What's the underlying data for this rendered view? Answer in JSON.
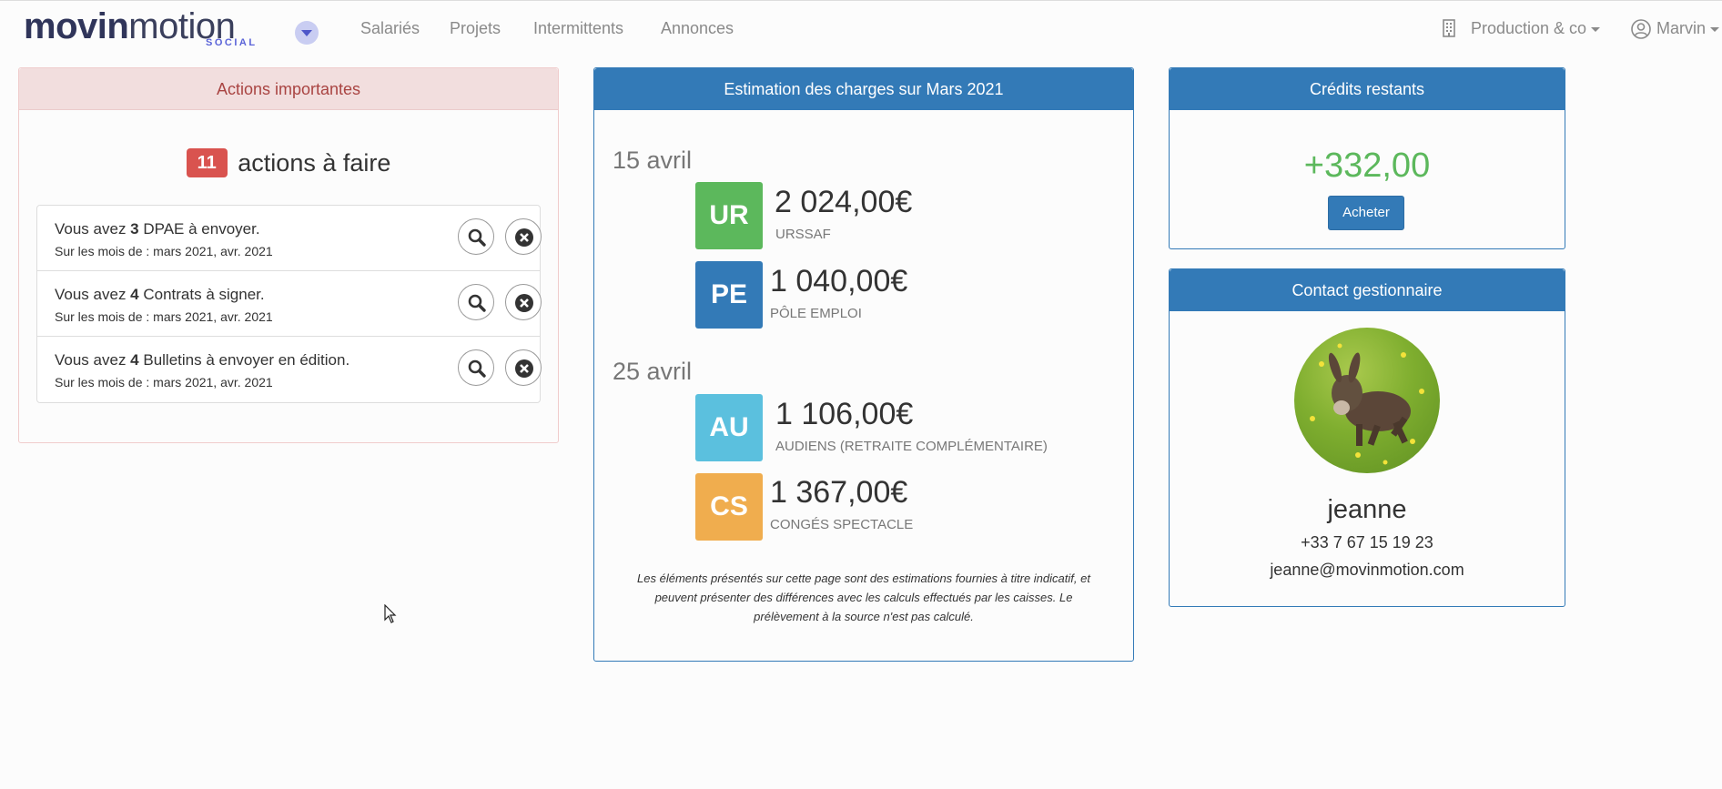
{
  "brand": {
    "name_bold": "movin",
    "name_light": "motion",
    "sub": "SOCIAL",
    "accent": "#5a63d8"
  },
  "nav": {
    "links": [
      "Salariés",
      "Projets",
      "Intermittents",
      "Annonces"
    ],
    "company": "Production & co",
    "user": "Marvin",
    "company_icon": "building-icon",
    "user_icon": "user-circle-icon"
  },
  "actions": {
    "title": "Actions importantes",
    "count": "11",
    "count_label": "actions à faire",
    "items": [
      {
        "prefix": "Vous avez ",
        "num": "3",
        "suffix": " DPAE à envoyer.",
        "sub": "Sur les mois de : mars 2021, avr. 2021"
      },
      {
        "prefix": "Vous avez ",
        "num": "4",
        "suffix": " Contrats à signer.",
        "sub": "Sur les mois de : mars 2021, avr. 2021"
      },
      {
        "prefix": "Vous avez ",
        "num": "4",
        "suffix": " Bulletins à envoyer en édition.",
        "sub": "Sur les mois de : mars 2021, avr. 2021"
      }
    ]
  },
  "charges": {
    "title": "Estimation des charges sur Mars 2021",
    "groups": [
      {
        "date": "15 avril",
        "entries": [
          {
            "code": "UR",
            "amount": "2 024,00€",
            "label": "URSSAF",
            "color": "#5cb85c"
          },
          {
            "code": "PE",
            "amount": "1 040,00€",
            "label": "PÔLE EMPLOI",
            "color": "#337ab7"
          }
        ]
      },
      {
        "date": "25 avril",
        "entries": [
          {
            "code": "AU",
            "amount": "1 106,00€",
            "label": "AUDIENS (RETRAITE COMPLÉMENTAIRE)",
            "color": "#5bc0de"
          },
          {
            "code": "CS",
            "amount": "1 367,00€",
            "label": "CONGÉS SPECTACLE",
            "color": "#f0ad4e"
          }
        ]
      }
    ],
    "disclaimer": "Les éléments présentés sur cette page sont des estimations fournies à titre indicatif, et peuvent présenter des différences avec les calculs effectués par les caisses. Le prélèvement à la source n'est pas calculé."
  },
  "credits": {
    "title": "Crédits restants",
    "value": "+332,00",
    "button": "Acheter"
  },
  "contact": {
    "title": "Contact gestionnaire",
    "name": "jeanne",
    "phone": "+33 7 67 15 19 23",
    "email": "jeanne@movinmotion.com"
  }
}
